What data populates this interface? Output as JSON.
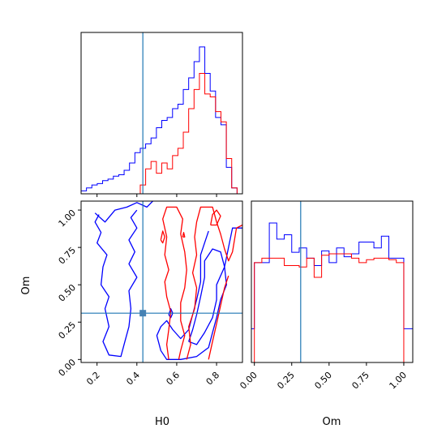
{
  "chart_data": [
    {
      "type": "histogram",
      "panel": "H0-marginal",
      "xlim": [
        0.12,
        0.93
      ],
      "truth": 0.43,
      "series": [
        {
          "color": "#0000ff",
          "bin_edges": [
            0.12,
            0.147,
            0.174,
            0.201,
            0.228,
            0.255,
            0.282,
            0.309,
            0.336,
            0.363,
            0.39,
            0.417,
            0.444,
            0.471,
            0.498,
            0.525,
            0.552,
            0.579,
            0.606,
            0.633,
            0.66,
            0.687,
            0.714,
            0.741,
            0.768,
            0.795,
            0.822,
            0.849,
            0.876,
            0.903,
            0.93
          ],
          "values": [
            0.02,
            0.04,
            0.06,
            0.07,
            0.09,
            0.1,
            0.12,
            0.13,
            0.16,
            0.21,
            0.28,
            0.31,
            0.34,
            0.38,
            0.45,
            0.5,
            0.52,
            0.58,
            0.61,
            0.71,
            0.79,
            0.9,
            1.0,
            0.82,
            0.7,
            0.52,
            0.47,
            0.18,
            0.04,
            0.0
          ]
        },
        {
          "color": "#ff0000",
          "bin_edges": [
            0.12,
            0.147,
            0.174,
            0.201,
            0.228,
            0.255,
            0.282,
            0.309,
            0.336,
            0.363,
            0.39,
            0.417,
            0.444,
            0.471,
            0.498,
            0.525,
            0.552,
            0.579,
            0.606,
            0.633,
            0.66,
            0.687,
            0.714,
            0.741,
            0.768,
            0.795,
            0.822,
            0.849,
            0.876,
            0.903,
            0.93
          ],
          "values": [
            0.0,
            0.0,
            0.0,
            0.0,
            0.0,
            0.0,
            0.0,
            0.0,
            0.0,
            0.0,
            0.0,
            0.06,
            0.17,
            0.22,
            0.14,
            0.21,
            0.17,
            0.26,
            0.31,
            0.42,
            0.58,
            0.71,
            0.82,
            0.68,
            0.66,
            0.56,
            0.49,
            0.24,
            0.04,
            0.0
          ]
        }
      ]
    },
    {
      "type": "contour",
      "panel": "H0-Om-joint",
      "xlabel": "H0",
      "ylabel": "Om",
      "xlim": [
        0.12,
        0.93
      ],
      "ylim": [
        -0.02,
        1.06
      ],
      "xticks": [
        "0.2",
        "0.4",
        "0.6",
        "0.8"
      ],
      "xtick_values": [
        0.2,
        0.4,
        0.6,
        0.8
      ],
      "yticks": [
        "0.00",
        "0.25",
        "0.50",
        "0.75",
        "1.00"
      ],
      "ytick_values": [
        0.0,
        0.25,
        0.5,
        0.75,
        1.0
      ],
      "truth": [
        0.43,
        0.31
      ],
      "contours": [
        {
          "color": "#0000ff",
          "points": [
            [
              0.19,
              0.98
            ],
            [
              0.24,
              0.92
            ],
            [
              0.29,
              1.0
            ],
            [
              0.35,
              1.02
            ],
            [
              0.4,
              1.05
            ],
            [
              0.45,
              1.02
            ],
            [
              0.48,
              1.06
            ]
          ]
        },
        {
          "color": "#0000ff",
          "points": [
            [
              0.21,
              0.97
            ],
            [
              0.19,
              0.92
            ],
            [
              0.22,
              0.85
            ],
            [
              0.2,
              0.78
            ],
            [
              0.25,
              0.7
            ],
            [
              0.23,
              0.62
            ],
            [
              0.22,
              0.5
            ],
            [
              0.26,
              0.42
            ],
            [
              0.24,
              0.34
            ],
            [
              0.26,
              0.22
            ],
            [
              0.23,
              0.12
            ],
            [
              0.26,
              0.03
            ],
            [
              0.32,
              0.02
            ],
            [
              0.34,
              0.12
            ],
            [
              0.36,
              0.22
            ],
            [
              0.37,
              0.34
            ],
            [
              0.36,
              0.46
            ],
            [
              0.4,
              0.55
            ],
            [
              0.36,
              0.64
            ],
            [
              0.39,
              0.72
            ],
            [
              0.36,
              0.8
            ],
            [
              0.4,
              0.88
            ],
            [
              0.37,
              0.95
            ],
            [
              0.4,
              1.0
            ]
          ]
        },
        {
          "color": "#0000ff",
          "points": [
            [
              0.93,
              0.88
            ],
            [
              0.88,
              0.88
            ],
            [
              0.86,
              0.75
            ],
            [
              0.84,
              0.62
            ],
            [
              0.85,
              0.5
            ],
            [
              0.82,
              0.4
            ],
            [
              0.8,
              0.28
            ],
            [
              0.78,
              0.18
            ],
            [
              0.76,
              0.08
            ],
            [
              0.7,
              0.02
            ],
            [
              0.62,
              0.0
            ],
            [
              0.55,
              0.0
            ],
            [
              0.52,
              0.06
            ],
            [
              0.5,
              0.16
            ],
            [
              0.52,
              0.22
            ],
            [
              0.55,
              0.26
            ],
            [
              0.58,
              0.2
            ],
            [
              0.62,
              0.14
            ],
            [
              0.66,
              0.2
            ],
            [
              0.68,
              0.3
            ],
            [
              0.7,
              0.4
            ],
            [
              0.72,
              0.52
            ],
            [
              0.72,
              0.62
            ],
            [
              0.72,
              0.7
            ],
            [
              0.74,
              0.78
            ],
            [
              0.76,
              0.86
            ]
          ]
        },
        {
          "color": "#0000ff",
          "points": [
            [
              0.66,
              0.12
            ],
            [
              0.68,
              0.2
            ],
            [
              0.7,
              0.3
            ],
            [
              0.72,
              0.42
            ],
            [
              0.74,
              0.55
            ],
            [
              0.74,
              0.66
            ],
            [
              0.78,
              0.74
            ],
            [
              0.82,
              0.72
            ],
            [
              0.84,
              0.62
            ],
            [
              0.8,
              0.5
            ],
            [
              0.8,
              0.4
            ],
            [
              0.78,
              0.28
            ],
            [
              0.74,
              0.18
            ],
            [
              0.7,
              0.1
            ],
            [
              0.66,
              0.12
            ]
          ]
        },
        {
          "color": "#0000ff",
          "points": [
            [
              0.56,
              0.3
            ],
            [
              0.57,
              0.34
            ],
            [
              0.58,
              0.31
            ],
            [
              0.57,
              0.28
            ],
            [
              0.56,
              0.3
            ]
          ]
        },
        {
          "color": "#ff0000",
          "points": [
            [
              0.56,
              0.0
            ],
            [
              0.55,
              0.1
            ],
            [
              0.56,
              0.2
            ],
            [
              0.57,
              0.32
            ],
            [
              0.55,
              0.42
            ],
            [
              0.54,
              0.52
            ],
            [
              0.56,
              0.6
            ],
            [
              0.54,
              0.7
            ],
            [
              0.55,
              0.82
            ],
            [
              0.53,
              0.94
            ],
            [
              0.55,
              1.02
            ],
            [
              0.6,
              1.02
            ],
            [
              0.63,
              0.94
            ],
            [
              0.62,
              0.84
            ],
            [
              0.64,
              0.72
            ],
            [
              0.65,
              0.6
            ],
            [
              0.64,
              0.48
            ],
            [
              0.62,
              0.38
            ],
            [
              0.62,
              0.26
            ],
            [
              0.64,
              0.16
            ],
            [
              0.62,
              0.06
            ],
            [
              0.61,
              0.0
            ]
          ]
        },
        {
          "color": "#ff0000",
          "points": [
            [
              0.52,
              0.8
            ],
            [
              0.53,
              0.86
            ],
            [
              0.54,
              0.82
            ],
            [
              0.53,
              0.78
            ],
            [
              0.52,
              0.8
            ]
          ]
        },
        {
          "color": "#ff0000",
          "points": [
            [
              0.65,
              0.0
            ],
            [
              0.67,
              0.1
            ],
            [
              0.66,
              0.22
            ],
            [
              0.69,
              0.34
            ],
            [
              0.7,
              0.48
            ],
            [
              0.68,
              0.58
            ],
            [
              0.7,
              0.7
            ],
            [
              0.69,
              0.82
            ],
            [
              0.7,
              0.92
            ],
            [
              0.72,
              1.02
            ],
            [
              0.78,
              1.02
            ],
            [
              0.8,
              0.92
            ],
            [
              0.82,
              0.84
            ],
            [
              0.84,
              0.74
            ],
            [
              0.86,
              0.66
            ],
            [
              0.88,
              0.72
            ],
            [
              0.9,
              0.88
            ],
            [
              0.93,
              0.9
            ]
          ]
        },
        {
          "color": "#ff0000",
          "points": [
            [
              0.76,
              0.0
            ],
            [
              0.78,
              0.12
            ],
            [
              0.8,
              0.24
            ],
            [
              0.82,
              0.36
            ],
            [
              0.84,
              0.48
            ],
            [
              0.86,
              0.56
            ]
          ]
        },
        {
          "color": "#ff0000",
          "points": [
            [
              0.77,
              0.9
            ],
            [
              0.78,
              0.97
            ],
            [
              0.8,
              1.0
            ],
            [
              0.82,
              0.96
            ],
            [
              0.8,
              0.9
            ],
            [
              0.77,
              0.9
            ]
          ]
        },
        {
          "color": "#ff0000",
          "points": [
            [
              0.63,
              0.82
            ],
            [
              0.635,
              0.85
            ],
            [
              0.64,
              0.82
            ],
            [
              0.63,
              0.82
            ]
          ]
        }
      ]
    },
    {
      "type": "histogram",
      "panel": "Om-marginal",
      "xlabel": "Om",
      "xlim": [
        -0.02,
        1.06
      ],
      "xticks": [
        "0.00",
        "0.25",
        "0.50",
        "0.75",
        "1.00"
      ],
      "xtick_values": [
        0.0,
        0.25,
        0.5,
        0.75,
        1.0
      ],
      "truth": 0.31,
      "series": [
        {
          "color": "#0000ff",
          "bin_edges": [
            -0.02,
            0.0,
            0.05,
            0.1,
            0.15,
            0.2,
            0.25,
            0.3,
            0.35,
            0.4,
            0.45,
            0.5,
            0.55,
            0.6,
            0.65,
            0.7,
            0.75,
            0.8,
            0.85,
            0.9,
            0.95,
            1.0,
            1.06
          ],
          "values": [
            0.23,
            0.68,
            0.68,
            0.95,
            0.84,
            0.87,
            0.75,
            0.78,
            0.71,
            0.66,
            0.76,
            0.68,
            0.78,
            0.72,
            0.74,
            0.82,
            0.82,
            0.78,
            0.86,
            0.71,
            0.71,
            0.23
          ]
        },
        {
          "color": "#ff0000",
          "bin_edges": [
            -0.02,
            0.0,
            0.05,
            0.1,
            0.15,
            0.2,
            0.25,
            0.3,
            0.35,
            0.4,
            0.45,
            0.5,
            0.55,
            0.6,
            0.65,
            0.7,
            0.75,
            0.8,
            0.85,
            0.9,
            0.95,
            1.0,
            1.06
          ],
          "values": [
            0.0,
            0.68,
            0.71,
            0.71,
            0.71,
            0.66,
            0.66,
            0.65,
            0.71,
            0.58,
            0.73,
            0.74,
            0.74,
            0.74,
            0.71,
            0.68,
            0.7,
            0.71,
            0.71,
            0.7,
            0.68,
            0.0
          ]
        }
      ]
    }
  ]
}
